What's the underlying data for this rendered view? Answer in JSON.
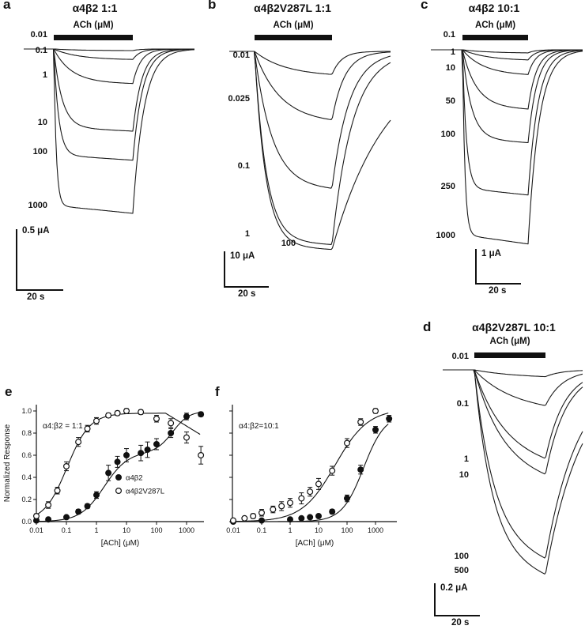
{
  "figure": {
    "bg": "#ffffff",
    "ink": "#111111"
  },
  "chart_data": [
    {
      "id": "a",
      "type": "traces",
      "letter": "a",
      "title": "α4β2 1:1",
      "ach_label": "ACh (μM)",
      "scale_current": "0.5 μA",
      "scale_time": "20 s",
      "conc_unit": "μM",
      "sweeps": [
        {
          "conc": "0.01",
          "amp": 2,
          "label_dy": -17
        },
        {
          "conc": "0.1",
          "amp": 13,
          "label_dy": 3
        },
        {
          "conc": "1",
          "amp": 42,
          "label_dy": 34
        },
        {
          "conc": "10",
          "amp": 99,
          "label_dy": 94
        },
        {
          "conc": "100",
          "amp": 134,
          "label_dy": 131
        },
        {
          "conc": "1000",
          "amp": 198,
          "label_dy": 199
        }
      ]
    },
    {
      "id": "b",
      "type": "traces",
      "letter": "b",
      "title": "α4β2V287L 1:1",
      "ach_label": "ACh (μM)",
      "scale_current": "10 μA",
      "scale_time": "20 s",
      "conc_unit": "μM",
      "sweeps": [
        {
          "conc": "0.01",
          "amp": 31,
          "label_dy": 6,
          "toff": 12
        },
        {
          "conc": "0.025",
          "amp": 89,
          "label_dy": 61,
          "toff": 16
        },
        {
          "conc": "0.1",
          "amp": 172,
          "label_dy": 146,
          "toff": 22
        },
        {
          "conc": "1",
          "amp": 240,
          "label_dy": 232,
          "toff": 26
        },
        {
          "conc": "100",
          "amp": 246,
          "label_dy": 244,
          "toff": 70,
          "label_pos": "bottom",
          "label_x": 88
        }
      ]
    },
    {
      "id": "c",
      "type": "traces",
      "letter": "c",
      "title": "α4β2 10:1",
      "ach_label": "ACh (μM)",
      "scale_current": "1 μA",
      "scale_time": "20 s",
      "conc_unit": "μM",
      "sweeps": [
        {
          "conc": "0.1",
          "amp": 4,
          "label_dy": -18
        },
        {
          "conc": "1",
          "amp": 13,
          "label_dy": 4
        },
        {
          "conc": "10",
          "amp": 31,
          "label_dy": 24
        },
        {
          "conc": "50",
          "amp": 72,
          "label_dy": 66
        },
        {
          "conc": "100",
          "amp": 112,
          "label_dy": 108
        },
        {
          "conc": "250",
          "amp": 175,
          "label_dy": 174
        },
        {
          "conc": "1000",
          "amp": 234,
          "label_dy": 236
        }
      ]
    },
    {
      "id": "d",
      "type": "traces",
      "letter": "d",
      "title": "α4β2V287L 10:1",
      "ach_label": "ACh (μM)",
      "scale_current": "0.2 μA",
      "scale_time": "20 s",
      "conc_unit": "μM",
      "sweeps": [
        {
          "conc": "0.01",
          "amp": 9,
          "label_dy": -16,
          "toff": 20
        },
        {
          "conc": "0.1",
          "amp": 46,
          "label_dy": 44,
          "toff": 22
        },
        {
          "conc": "1",
          "amp": 109,
          "label_dy": 114,
          "toff": 24
        },
        {
          "conc": "10",
          "amp": 127,
          "label_dy": 134,
          "toff": 26
        },
        {
          "conc": "100",
          "amp": 218,
          "label_dy": 237,
          "toff": 42
        },
        {
          "conc": "500",
          "amp": 235,
          "label_dy": 255,
          "toff": 46
        }
      ]
    },
    {
      "id": "e",
      "type": "scatter",
      "letter": "e",
      "annotation": "α4:β2 = 1:1",
      "xlabel": "[ACh] (μM)",
      "ylabel": "Normalized Response",
      "xscale": "log",
      "xlim": [
        0.01,
        3000
      ],
      "ylim": [
        0,
        1
      ],
      "xticks": [
        "0.01",
        "0.1",
        "1",
        "10",
        "100",
        "1000"
      ],
      "yticks": [
        "0.0",
        "0.2",
        "0.4",
        "0.6",
        "0.8",
        "1.0"
      ],
      "legend": [
        {
          "label": "α4β2",
          "marker": "filled"
        },
        {
          "label": "α4β2V287L",
          "marker": "open"
        }
      ],
      "series": [
        {
          "name": "α4β2",
          "marker": "filled",
          "fit": {
            "components": [
              {
                "top": 0.63,
                "ec50": 1.8,
                "n": 1.1
              },
              {
                "top": 0.37,
                "ec50": 350,
                "n": 1.6
              }
            ]
          },
          "points": [
            [
              0.01,
              0.01,
              0
            ],
            [
              0.025,
              0.02,
              0
            ],
            [
              0.1,
              0.04,
              0.01
            ],
            [
              0.25,
              0.09,
              0.02
            ],
            [
              0.5,
              0.14,
              0.02
            ],
            [
              1,
              0.24,
              0.03
            ],
            [
              2.5,
              0.44,
              0.07
            ],
            [
              5,
              0.54,
              0.05
            ],
            [
              10,
              0.6,
              0.06
            ],
            [
              30,
              0.62,
              0.07
            ],
            [
              50,
              0.65,
              0.07
            ],
            [
              100,
              0.7,
              0.05
            ],
            [
              300,
              0.8,
              0.04
            ],
            [
              1000,
              0.95,
              0.03
            ],
            [
              3000,
              0.97,
              0.02
            ]
          ]
        },
        {
          "name": "α4β2V287L",
          "marker": "open",
          "fit": {
            "components": [
              {
                "top": 0.98,
                "ec50": 0.105,
                "n": 1.15
              }
            ],
            "decline": {
              "start": 200,
              "end": 3000,
              "factor": 0.8
            }
          },
          "points": [
            [
              0.01,
              0.05,
              0.02
            ],
            [
              0.025,
              0.15,
              0.03
            ],
            [
              0.05,
              0.28,
              0.03
            ],
            [
              0.1,
              0.5,
              0.04
            ],
            [
              0.25,
              0.72,
              0.04
            ],
            [
              0.5,
              0.84,
              0.03
            ],
            [
              1,
              0.91,
              0.03
            ],
            [
              2.5,
              0.96,
              0.02
            ],
            [
              5,
              0.98,
              0.02
            ],
            [
              10,
              1.0,
              0.02
            ],
            [
              30,
              0.99,
              0.02
            ],
            [
              100,
              0.93,
              0.03
            ],
            [
              300,
              0.89,
              0.04
            ],
            [
              1000,
              0.76,
              0.05
            ],
            [
              3000,
              0.6,
              0.08
            ]
          ]
        }
      ]
    },
    {
      "id": "f",
      "type": "scatter",
      "letter": "f",
      "annotation": "α4:β2=10:1",
      "xlabel": "[ACh] (μM)",
      "ylabel": "",
      "xscale": "log",
      "xlim": [
        0.01,
        3000
      ],
      "ylim": [
        0,
        1
      ],
      "xticks": [
        "0.01",
        "0.1",
        "1",
        "10",
        "100",
        "1000"
      ],
      "yticks": [
        "0.0",
        "0.2",
        "0.4",
        "0.6",
        "0.8",
        "1.0"
      ],
      "series": [
        {
          "name": "α4β2",
          "marker": "filled",
          "fit": {
            "components": [
              {
                "top": 0.97,
                "ec50": 380,
                "n": 1.15
              }
            ]
          },
          "points": [
            [
              0.01,
              0.0,
              0
            ],
            [
              0.1,
              0.01,
              0
            ],
            [
              1,
              0.02,
              0.01
            ],
            [
              2.5,
              0.03,
              0.01
            ],
            [
              5,
              0.04,
              0.01
            ],
            [
              10,
              0.05,
              0.01
            ],
            [
              30,
              0.09,
              0.02
            ],
            [
              100,
              0.21,
              0.03
            ],
            [
              300,
              0.47,
              0.04
            ],
            [
              1000,
              0.83,
              0.03
            ],
            [
              3000,
              0.93,
              0.03
            ]
          ]
        },
        {
          "name": "α4β2V287L",
          "marker": "open",
          "fit": {
            "components": [
              {
                "top": 1.02,
                "ec50": 38,
                "n": 0.75
              }
            ]
          },
          "points": [
            [
              0.01,
              0.01,
              0
            ],
            [
              0.025,
              0.03,
              0.01
            ],
            [
              0.05,
              0.05,
              0.02
            ],
            [
              0.1,
              0.08,
              0.03
            ],
            [
              0.25,
              0.11,
              0.03
            ],
            [
              0.5,
              0.14,
              0.04
            ],
            [
              1,
              0.17,
              0.04
            ],
            [
              2.5,
              0.21,
              0.05
            ],
            [
              5,
              0.27,
              0.04
            ],
            [
              10,
              0.34,
              0.05
            ],
            [
              30,
              0.46,
              0.04
            ],
            [
              100,
              0.71,
              0.04
            ],
            [
              300,
              0.9,
              0.03
            ],
            [
              1000,
              1.0,
              0.02
            ]
          ]
        }
      ]
    }
  ]
}
